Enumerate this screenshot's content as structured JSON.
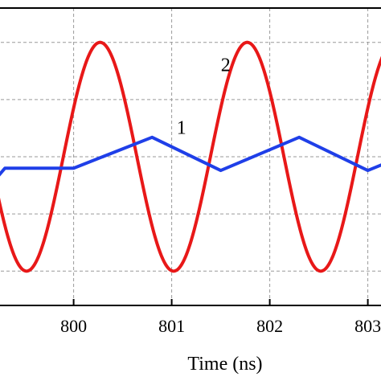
{
  "chart_data": {
    "type": "line",
    "xlabel": "Time (ns)",
    "ylabel": "",
    "xlim": [
      799.2,
      803.2
    ],
    "ylim": [
      -1.3,
      1.3
    ],
    "grid": true,
    "x_ticks": [
      800,
      801,
      802,
      803
    ],
    "x_tick_labels": [
      "800",
      "801",
      "802",
      "803"
    ],
    "y_gridlines": [
      -1.0,
      -0.5,
      0.0,
      0.5,
      1.0
    ],
    "series": [
      {
        "name": "1",
        "color": "#1f3fe8",
        "values_desc": "triangle-like wave",
        "points": [
          [
            799.2,
            -0.2
          ],
          [
            799.3,
            -0.1
          ],
          [
            800.0,
            -0.1
          ],
          [
            800.8,
            0.17
          ],
          [
            801.5,
            -0.12
          ],
          [
            802.3,
            0.17
          ],
          [
            803.0,
            -0.12
          ],
          [
            803.2,
            -0.05
          ]
        ]
      },
      {
        "name": "2",
        "color": "#e81818",
        "amplitude": 1.0,
        "period_ns": 1.5,
        "peaks_x": [
          800.27,
          801.77
        ],
        "troughs_x": [
          801.02,
          802.52
        ]
      }
    ],
    "annotations": [
      {
        "text": "1",
        "x": 801.1,
        "y": 0.2
      },
      {
        "text": "2",
        "x": 801.55,
        "y": 0.75
      }
    ]
  }
}
